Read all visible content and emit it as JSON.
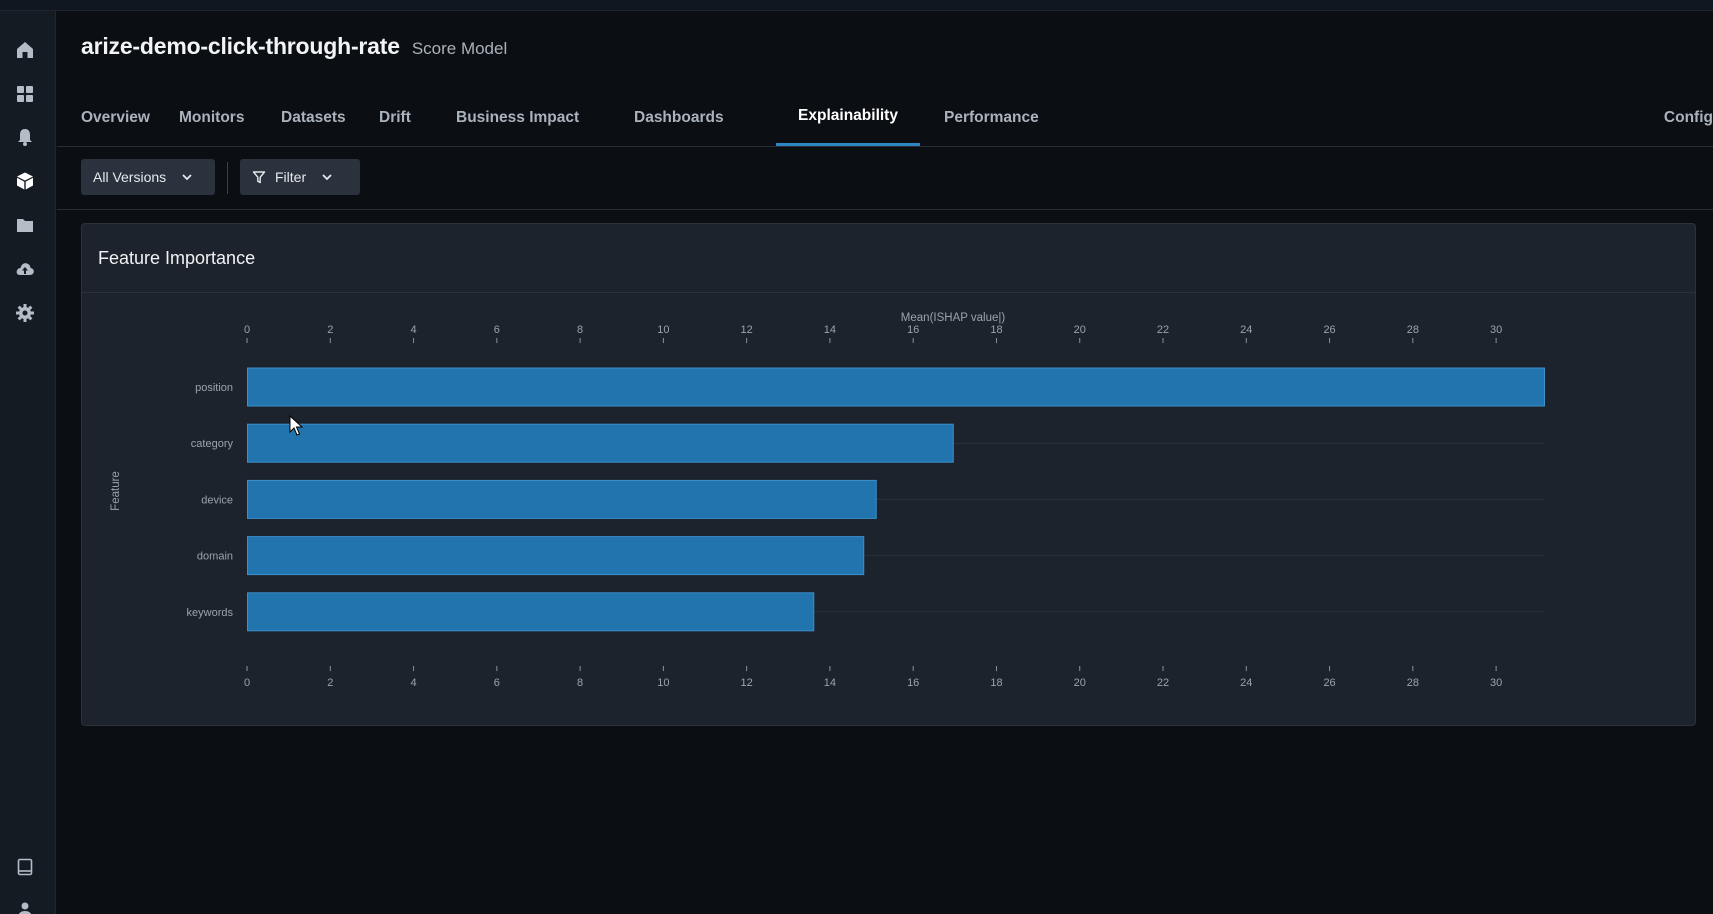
{
  "sidebar": {
    "items": [
      {
        "name": "home-icon"
      },
      {
        "name": "grid-icon"
      },
      {
        "name": "bell-icon"
      },
      {
        "name": "cube-icon"
      },
      {
        "name": "folder-icon"
      },
      {
        "name": "cloud-upload-icon"
      },
      {
        "name": "gear-icon"
      }
    ],
    "bottom": [
      {
        "name": "book-icon"
      },
      {
        "name": "user-icon"
      }
    ]
  },
  "header": {
    "model_name": "arize-demo-click-through-rate",
    "model_type": "Score Model"
  },
  "tabs": [
    {
      "label": "Overview",
      "active": false
    },
    {
      "label": "Monitors",
      "active": false
    },
    {
      "label": "Datasets",
      "active": false
    },
    {
      "label": "Drift",
      "active": false
    },
    {
      "label": "Business Impact",
      "active": false
    },
    {
      "label": "Dashboards",
      "active": false
    },
    {
      "label": "Explainability",
      "active": true
    },
    {
      "label": "Performance",
      "active": false
    }
  ],
  "config_label": "Config",
  "toolbar": {
    "versions_label": "All Versions",
    "filter_label": "Filter"
  },
  "panel": {
    "title": "Feature Importance"
  },
  "colors": {
    "accent": "#2d87c3",
    "bar_fill": "#2174ad",
    "bar_stroke": "#3b8fca"
  },
  "chart_data": {
    "type": "bar",
    "orientation": "horizontal",
    "title": "",
    "xlabel": "Mean(ISHAP value|)",
    "ylabel": "Feature",
    "categories": [
      "position",
      "category",
      "device",
      "domain",
      "keywords"
    ],
    "values": [
      31.15,
      16.95,
      15.1,
      14.8,
      13.6
    ],
    "xlim": [
      0,
      31.15
    ],
    "xticks": [
      0,
      2,
      4,
      6,
      8,
      10,
      12,
      14,
      16,
      18,
      20,
      22,
      24,
      26,
      28,
      30
    ],
    "grid": true,
    "legend": "none"
  }
}
